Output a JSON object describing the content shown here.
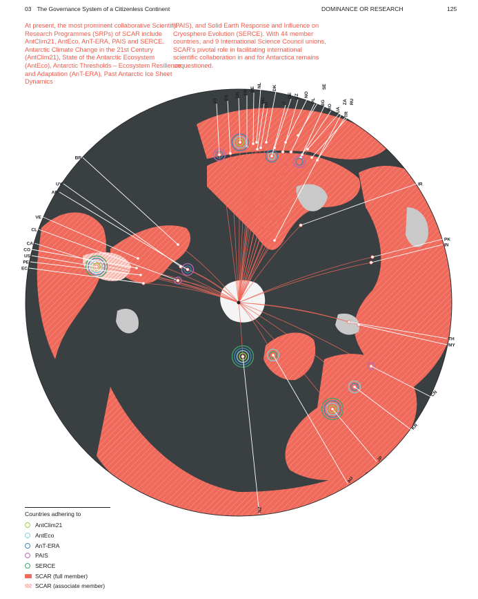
{
  "header": {
    "chapter_number": "03",
    "chapter_title": "The Governance System of a Citizenless Continent",
    "section": "DOMINANCE OR RESEARCH",
    "page_number": "125"
  },
  "intro": {
    "column_1": "At present, the most prominent collaborative Scientific Research Programmes (SRPs) of SCAR include AntClim21, AntEco, AnT-ERA, PAIS and SERCE. Antarctic Climate Change in the 21st Century (AntClim21), State of the Antarctic Ecosystem (AntEco), Antarctic Thresholds – Ecosystem Resilience and Adaptation (AnT-ERA), Past Antarctic Ice Sheet Dynamics",
    "column_2": "(PAIS), and Solid Earth Response and Influence on Cryosphere Evolution (SERCE). With 44 member countries, and 9 International Science Council unions, SCAR's pivotal role in facilitating international scientific collaboration in and for Antarctica remains unquestioned."
  },
  "map": {
    "colors": {
      "ocean": "#3a3f42",
      "member": "#f06a5c",
      "land": "#c9c9c9",
      "antarctica": "#f4f4f4",
      "line": "#f06a5c"
    },
    "labels": [
      "PT",
      "ES",
      "UK",
      "FR",
      "BE",
      "NL",
      "MC",
      "CH",
      "DK",
      "IT",
      "DE",
      "CZ",
      "NO",
      "PL",
      "SE",
      "BG",
      "RO",
      "UA",
      "ZA",
      "RU",
      "TR",
      "BR",
      "UY",
      "AR",
      "VE",
      "CL",
      "CA",
      "CO",
      "US",
      "PE",
      "EC",
      "IR",
      "PK",
      "IN",
      "TH",
      "MY",
      "CN",
      "KR",
      "JP",
      "AU",
      "NZ"
    ]
  },
  "legend": {
    "title": "Countries adhering to",
    "items": [
      {
        "label": "AntClim21",
        "color": "#9ccc4a"
      },
      {
        "label": "AntEco",
        "color": "#7fd0d6"
      },
      {
        "label": "AnT-ERA",
        "color": "#3f86b8"
      },
      {
        "label": "PAIS",
        "color": "#b46ab0"
      },
      {
        "label": "SERCE",
        "color": "#37a96c"
      }
    ],
    "full_member": "SCAR (full member)",
    "associate_member": "SCAR (associate member)"
  }
}
